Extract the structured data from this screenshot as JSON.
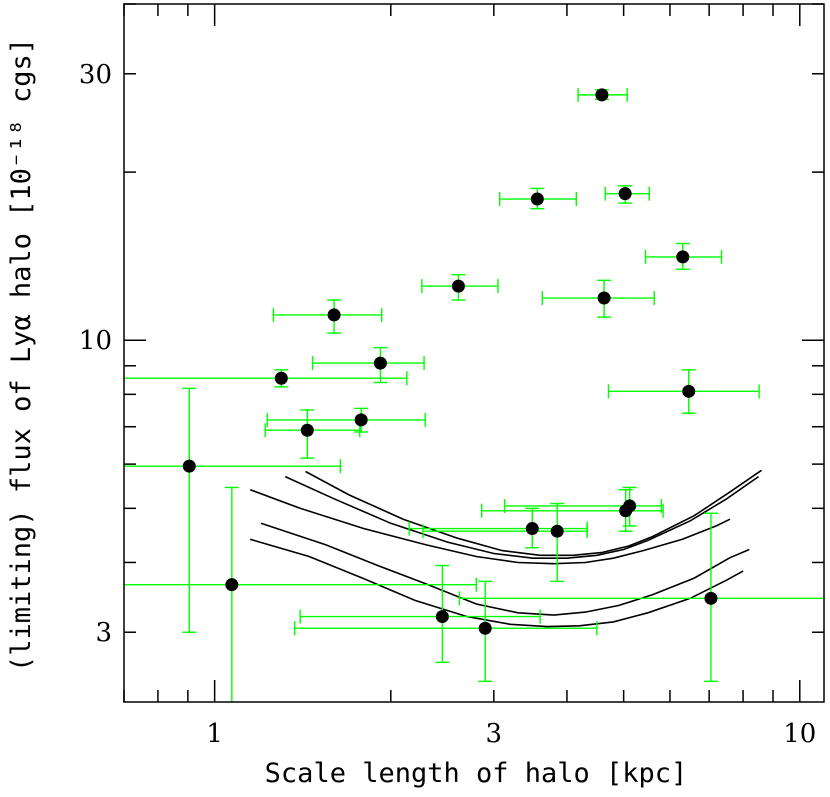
{
  "chart_data": {
    "type": "scatter",
    "title": "",
    "xlabel": "Scale length of halo [kpc]",
    "ylabel": "(limiting) flux of Lyα halo [10⁻¹⁸ cgs]",
    "xscale": "log",
    "yscale": "log",
    "xlim": [
      0.7,
      11.0
    ],
    "ylim": [
      2.25,
      40.0
    ],
    "xticks": [
      {
        "value": 1,
        "label": "1"
      },
      {
        "value": 3,
        "label": "3"
      },
      {
        "value": 10,
        "label": "10"
      }
    ],
    "yticks": [
      {
        "value": 3,
        "label": "3"
      },
      {
        "value": 10,
        "label": "10"
      },
      {
        "value": 30,
        "label": "30"
      }
    ],
    "grid": false,
    "legend": "none",
    "colors": {
      "points": "#000000",
      "errorbars": "#00ff00",
      "curves": "#000000"
    },
    "points": [
      {
        "x": 4.59,
        "y": 27.5,
        "xerr": [
          4.18,
          5.07
        ],
        "yerr": [
          27.0,
          28.1
        ]
      },
      {
        "x": 5.03,
        "y": 18.3,
        "xerr": [
          4.65,
          5.53
        ],
        "yerr": [
          17.6,
          18.9
        ]
      },
      {
        "x": 3.56,
        "y": 17.9,
        "xerr": [
          3.07,
          4.15
        ],
        "yerr": [
          17.2,
          18.7
        ]
      },
      {
        "x": 6.31,
        "y": 14.1,
        "xerr": [
          5.45,
          7.35
        ],
        "yerr": [
          13.4,
          14.9
        ]
      },
      {
        "x": 2.61,
        "y": 12.5,
        "xerr": [
          2.26,
          3.05
        ],
        "yerr": [
          11.8,
          13.1
        ]
      },
      {
        "x": 4.63,
        "y": 11.9,
        "xerr": [
          3.63,
          5.64
        ],
        "yerr": [
          11.0,
          12.8
        ]
      },
      {
        "x": 1.6,
        "y": 11.1,
        "xerr": [
          1.26,
          1.93
        ],
        "yerr": [
          10.3,
          11.8
        ]
      },
      {
        "x": 1.92,
        "y": 9.1,
        "xerr": [
          1.47,
          2.28
        ],
        "yerr": [
          8.4,
          9.7
        ]
      },
      {
        "x": 1.3,
        "y": 8.55,
        "xerr": [
          0.7,
          2.13
        ],
        "yerr": [
          8.25,
          8.85
        ]
      },
      {
        "x": 6.46,
        "y": 8.1,
        "xerr": [
          4.71,
          8.52
        ],
        "yerr": [
          7.4,
          8.85
        ]
      },
      {
        "x": 1.78,
        "y": 7.2,
        "xerr": [
          1.23,
          2.29
        ],
        "yerr": [
          6.85,
          7.55
        ]
      },
      {
        "x": 1.44,
        "y": 6.9,
        "xerr": [
          1.22,
          1.77
        ],
        "yerr": [
          6.15,
          7.5
        ]
      },
      {
        "x": 0.905,
        "y": 5.95,
        "xerr": [
          0.7,
          1.64
        ],
        "yerr": [
          3.0,
          8.2
        ]
      },
      {
        "x": 5.12,
        "y": 5.05,
        "xerr": [
          3.13,
          5.8
        ],
        "yerr": [
          4.65,
          5.45
        ]
      },
      {
        "x": 5.04,
        "y": 4.95,
        "xerr": [
          2.86,
          5.84
        ],
        "yerr": [
          4.55,
          5.4
        ]
      },
      {
        "x": 3.49,
        "y": 4.6,
        "xerr": [
          2.15,
          4.33
        ],
        "yerr": [
          4.25,
          5.0
        ]
      },
      {
        "x": 3.85,
        "y": 4.55,
        "xerr": [
          2.27,
          4.33
        ],
        "yerr": [
          3.7,
          5.1
        ]
      },
      {
        "x": 1.07,
        "y": 3.65,
        "xerr": [
          0.7,
          2.8
        ],
        "yerr": [
          2.25,
          5.45
        ]
      },
      {
        "x": 7.05,
        "y": 3.45,
        "xerr": [
          2.62,
          11.0
        ],
        "yerr": [
          2.45,
          4.9
        ]
      },
      {
        "x": 2.45,
        "y": 3.2,
        "xerr": [
          1.4,
          3.6
        ],
        "yerr": [
          2.65,
          3.95
        ]
      },
      {
        "x": 2.9,
        "y": 3.05,
        "xerr": [
          1.37,
          4.5
        ],
        "yerr": [
          2.45,
          3.7
        ]
      }
    ],
    "curves": [
      {
        "x": [
          1.32,
          1.6,
          2.0,
          2.5,
          3.0,
          3.5,
          4.0,
          4.5,
          5.0,
          5.5,
          6.5,
          7.5,
          8.5
        ],
        "y": [
          5.7,
          5.2,
          4.7,
          4.35,
          4.15,
          4.07,
          4.07,
          4.12,
          4.22,
          4.38,
          4.75,
          5.2,
          5.7
        ]
      },
      {
        "x": 1.43,
        "y": [
          5.82,
          5.28,
          4.78,
          4.42,
          4.2,
          4.12,
          4.12,
          4.17,
          4.28,
          4.45,
          4.85,
          5.35,
          5.85
        ],
        "x_list": [
          1.43,
          1.7,
          2.1,
          2.6,
          3.1,
          3.6,
          4.1,
          4.6,
          5.1,
          5.6,
          6.6,
          7.6,
          8.6
        ]
      },
      {
        "x": [
          1.15,
          1.4,
          1.8,
          2.3,
          2.8,
          3.3,
          3.8,
          4.3,
          4.8,
          5.4,
          6.3,
          7.2,
          7.6
        ],
        "y": [
          5.4,
          5.0,
          4.6,
          4.3,
          4.1,
          4.0,
          3.98,
          4.0,
          4.07,
          4.2,
          4.4,
          4.65,
          4.78
        ]
      },
      {
        "x": [
          1.15,
          1.45,
          1.8,
          2.2,
          2.7,
          3.2,
          3.7,
          4.2,
          4.8,
          5.5,
          6.5,
          7.5,
          8.0
        ],
        "y": [
          4.4,
          4.1,
          3.74,
          3.42,
          3.2,
          3.1,
          3.07,
          3.08,
          3.13,
          3.25,
          3.45,
          3.72,
          3.86
        ]
      },
      {
        "x": [
          1.2,
          1.55,
          1.9,
          2.3,
          2.8,
          3.3,
          3.8,
          4.3,
          4.9,
          5.6,
          6.6,
          7.6,
          8.2
        ],
        "y": [
          4.7,
          4.3,
          3.95,
          3.66,
          3.37,
          3.25,
          3.22,
          3.26,
          3.35,
          3.5,
          3.75,
          4.08,
          4.22
        ]
      }
    ]
  }
}
